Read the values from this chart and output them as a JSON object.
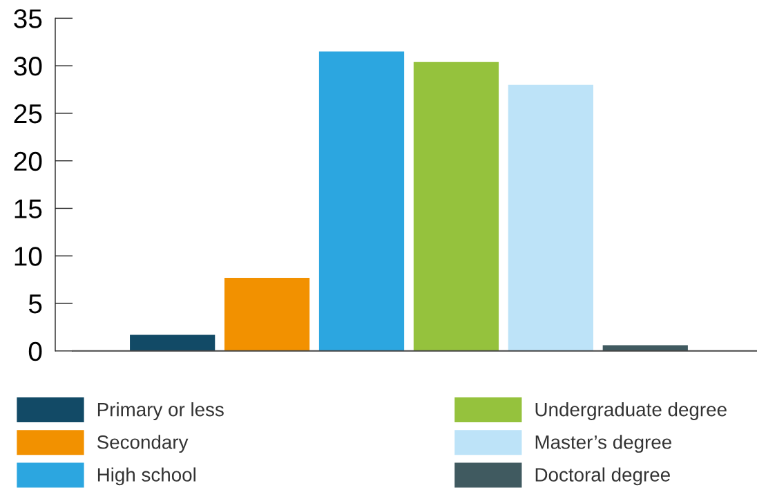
{
  "chart_data": {
    "type": "bar",
    "categories": [
      null
    ],
    "series": [
      {
        "name": "Primary or less",
        "color": "#124a66",
        "values": [
          1.7
        ]
      },
      {
        "name": "Secondary",
        "color": "#f29100",
        "values": [
          7.7
        ]
      },
      {
        "name": "High school",
        "color": "#2ca6e0",
        "values": [
          31.5
        ]
      },
      {
        "name": "Undergraduate degree",
        "color": "#95c23d",
        "values": [
          30.4
        ]
      },
      {
        "name": "Master’s degree",
        "color": "#bde3f8",
        "values": [
          28.0
        ]
      },
      {
        "name": "Doctoral degree",
        "color": "#405a60",
        "values": [
          0.6
        ]
      }
    ],
    "ylim": [
      0,
      35
    ],
    "yticks": [
      0,
      5,
      10,
      15,
      20,
      25,
      30,
      35
    ],
    "grid": false,
    "legend": "bottom",
    "tick_labels": "y"
  }
}
